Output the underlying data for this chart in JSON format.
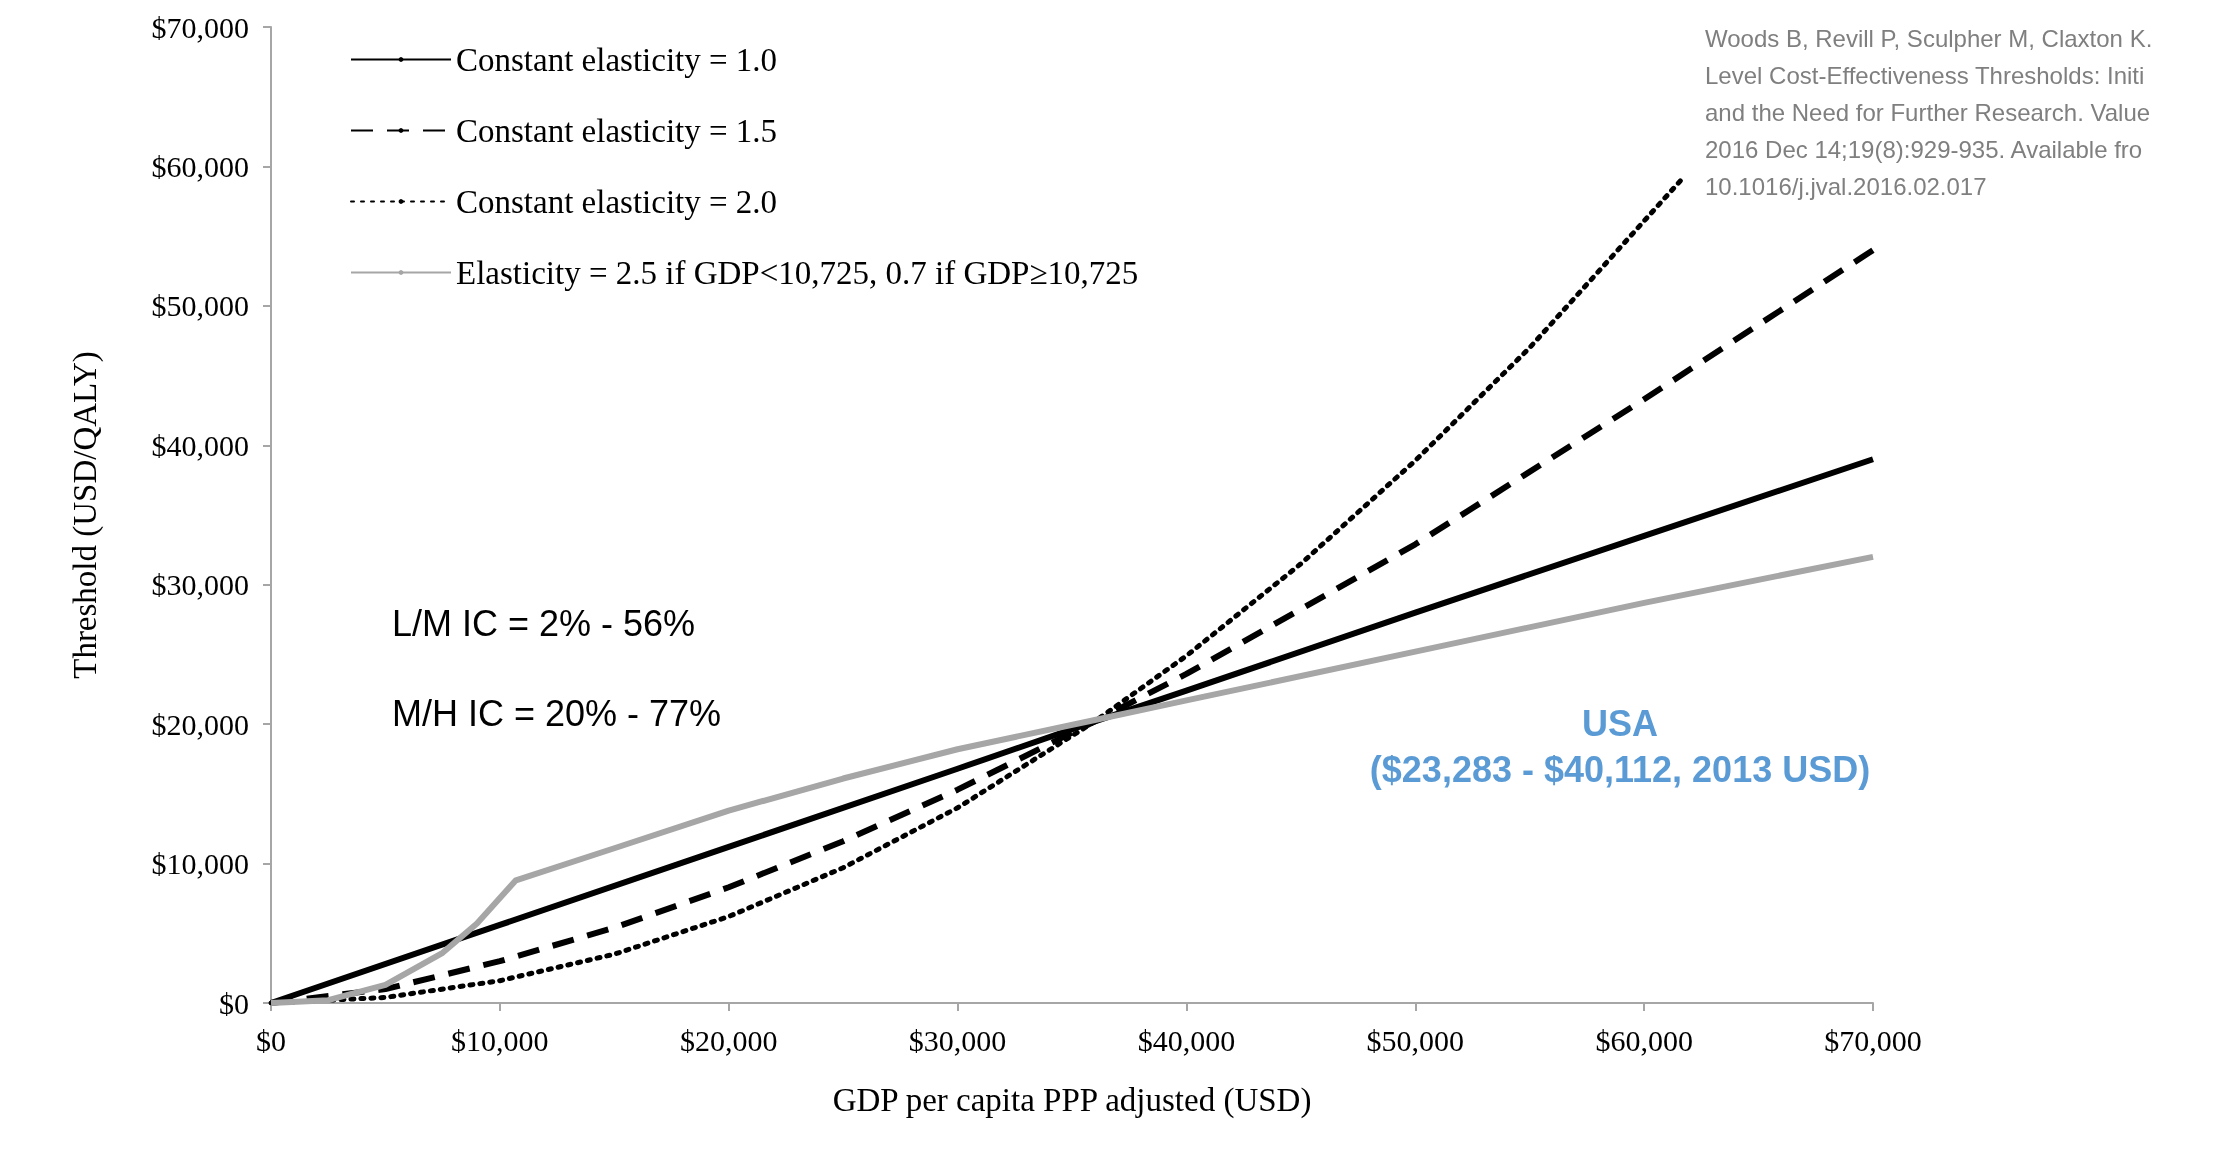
{
  "chart_data": {
    "type": "line",
    "xlabel": "GDP per capita PPP adjusted (USD)",
    "ylabel": "Threshold (USD/QALY)",
    "xlim": [
      0,
      70000
    ],
    "ylim": [
      0,
      70000
    ],
    "xticks": [
      {
        "value": 0,
        "label": "$0"
      },
      {
        "value": 10000,
        "label": "$10,000"
      },
      {
        "value": 20000,
        "label": "$20,000"
      },
      {
        "value": 30000,
        "label": "$30,000"
      },
      {
        "value": 40000,
        "label": "$40,000"
      },
      {
        "value": 50000,
        "label": "$50,000"
      },
      {
        "value": 60000,
        "label": "$60,000"
      },
      {
        "value": 70000,
        "label": "$70,000"
      }
    ],
    "yticks": [
      {
        "value": 0,
        "label": "$0"
      },
      {
        "value": 10000,
        "label": "$10,000"
      },
      {
        "value": 20000,
        "label": "$20,000"
      },
      {
        "value": 30000,
        "label": "$30,000"
      },
      {
        "value": 40000,
        "label": "$40,000"
      },
      {
        "value": 50000,
        "label": "$50,000"
      },
      {
        "value": 60000,
        "label": "$60,000"
      },
      {
        "value": 70000,
        "label": "$70,000"
      }
    ],
    "grid": false,
    "legend": "top left",
    "marker": "none",
    "series": [
      {
        "name": "Constant elasticity = 1.0",
        "color": "#000000",
        "line_style": "solid",
        "x": [
          0,
          10000,
          20000,
          30000,
          36000,
          40000,
          50000,
          60000,
          70000
        ],
        "values": [
          0,
          5600,
          11200,
          16800,
          20200,
          22400,
          28000,
          33500,
          39000
        ]
      },
      {
        "name": "Constant elasticity = 1.5",
        "color": "#000000",
        "line_style": "dashed",
        "x": [
          0,
          5000,
          10000,
          15000,
          20000,
          25000,
          30000,
          36000,
          40000,
          50000,
          60000,
          70000
        ],
        "values": [
          0,
          1000,
          3000,
          5400,
          8300,
          11600,
          15300,
          20200,
          23600,
          32900,
          43300,
          54000
        ]
      },
      {
        "name": "Constant elasticity = 2.0",
        "color": "#000000",
        "line_style": "dotted",
        "x": [
          0,
          5000,
          10000,
          15000,
          20000,
          25000,
          30000,
          36000,
          40000,
          45000,
          50000,
          55000,
          61600
        ],
        "values": [
          0,
          400,
          1600,
          3500,
          6200,
          9700,
          14000,
          20200,
          24900,
          31500,
          38900,
          47000,
          59000
        ]
      },
      {
        "name": "Elasticity = 2.5 if GDP<10,725, 0.7 if GDP≥10,725",
        "color": "#a6a6a6",
        "line_style": "solid",
        "x": [
          0,
          2500,
          5000,
          7500,
          9000,
          10700,
          15000,
          20000,
          25000,
          30000,
          36000,
          40000,
          50000,
          60000,
          70000
        ],
        "values": [
          0,
          200,
          1300,
          3600,
          5700,
          8800,
          11100,
          13800,
          16100,
          18200,
          20300,
          21700,
          25200,
          28700,
          32000
        ]
      }
    ],
    "annotations": [
      "L/M IC = 2% - 56%",
      "M/H IC = 20% - 77%",
      "USA\n($23,283 - $40,112, 2013 USD)",
      "Woods B, Revill P, Sculpher M, Claxton K.\nLevel Cost-Effectiveness Thresholds: Initi\nand the Need for Further Research. Value\n2016 Dec 14;19(8):929-935. Available fro\n10.1016/j.jval.2016.02.017"
    ]
  }
}
